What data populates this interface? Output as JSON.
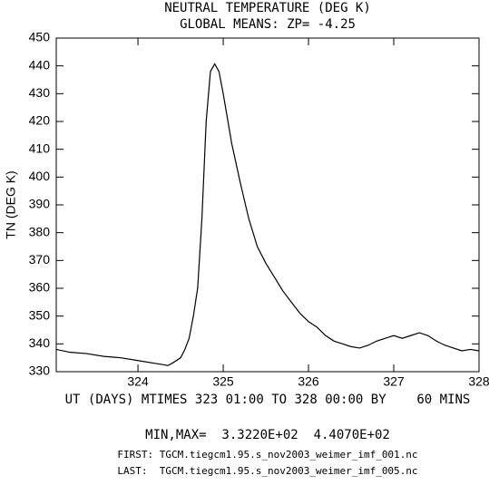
{
  "chart_data": {
    "type": "line",
    "title": "NEUTRAL TEMPERATURE (DEG K)",
    "subtitle": "GLOBAL MEANS: ZP= -4.25",
    "y_label": "TN (DEG K)",
    "x_label": "UT (DAYS) MTIMES 323 01:00 TO 328 00:00 BY    60 MINS",
    "annotations": [
      "MIN,MAX=  3.3220E+02  4.4070E+02",
      "FIRST: TGCM.tiegcm1.95.s_nov2003_weimer_imf_001.nc",
      "LAST:  TGCM.tiegcm1.95.s_nov2003_weimer_imf_005.nc"
    ],
    "x": [
      323.0417,
      323.2,
      323.4,
      323.6,
      323.8,
      324.0,
      324.2,
      324.3,
      324.35,
      324.4,
      324.5,
      324.55,
      324.6,
      324.65,
      324.7,
      324.75,
      324.8,
      324.85,
      324.9,
      324.95,
      325.0,
      325.1,
      325.2,
      325.3,
      325.4,
      325.5,
      325.6,
      325.7,
      325.8,
      325.9,
      326.0,
      326.1,
      326.2,
      326.3,
      326.4,
      326.5,
      326.6,
      326.7,
      326.8,
      326.9,
      327.0,
      327.1,
      327.2,
      327.3,
      327.4,
      327.5,
      327.6,
      327.7,
      327.8,
      327.9,
      328.0
    ],
    "series": [
      {
        "name": "TN",
        "color": "#000000",
        "values": [
          338,
          337,
          336.5,
          335.5,
          335,
          334,
          333,
          332.5,
          332.2,
          333,
          335,
          338,
          342,
          350,
          360,
          385,
          420,
          438,
          440.7,
          438,
          430,
          412,
          398,
          385,
          375,
          369,
          364,
          359,
          355,
          351,
          348,
          346,
          343,
          341,
          340,
          339,
          338.5,
          339.5,
          341,
          342,
          343,
          342,
          343,
          344,
          343,
          341,
          339.5,
          338.5,
          337.5,
          338,
          337.5
        ]
      }
    ],
    "xlim": [
      323.0417,
      328
    ],
    "ylim": [
      330,
      450
    ],
    "xticks": [
      324,
      325,
      326,
      327,
      328
    ],
    "yticks": [
      330,
      340,
      350,
      360,
      370,
      380,
      390,
      400,
      410,
      420,
      430,
      440,
      450
    ],
    "grid": false
  }
}
